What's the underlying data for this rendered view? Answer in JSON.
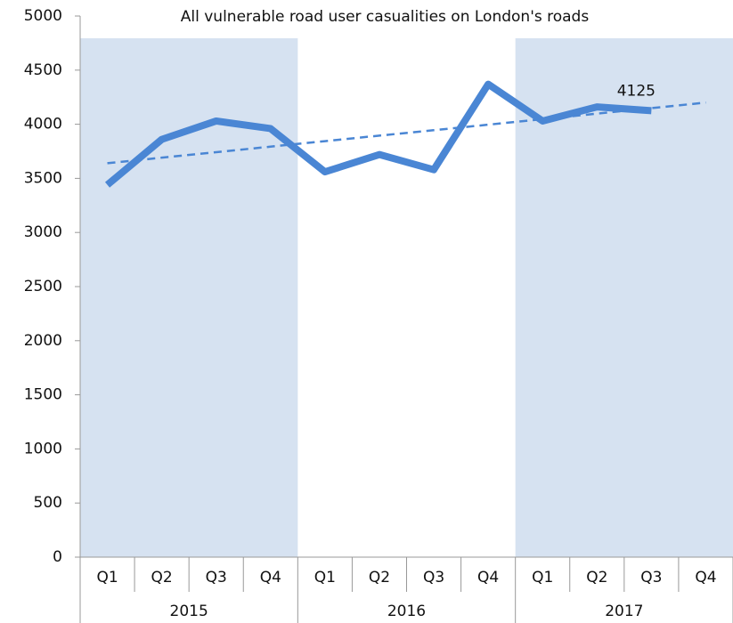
{
  "chart_data": {
    "type": "line",
    "title": "All vulnerable road user  casualities on London's roads",
    "groups": [
      {
        "name": "2015",
        "categories": [
          "Q1",
          "Q2",
          "Q3",
          "Q4"
        ]
      },
      {
        "name": "2016",
        "categories": [
          "Q1",
          "Q2",
          "Q3",
          "Q4"
        ]
      },
      {
        "name": "2017",
        "categories": [
          "Q1",
          "Q2",
          "Q3",
          "Q4"
        ]
      }
    ],
    "series": [
      {
        "color": "#4a86d4",
        "values": [
          3440,
          3860,
          4030,
          3960,
          3560,
          3720,
          3580,
          4370,
          4030,
          4160,
          4125,
          null
        ],
        "value_labels": [
          null,
          null,
          null,
          null,
          null,
          null,
          null,
          null,
          null,
          null,
          "4125",
          null
        ]
      },
      {
        "color": "#4a86d4",
        "dashed": true,
        "values": [
          3640,
          3691,
          3742,
          3793,
          3844,
          3895,
          3945,
          3996,
          4047,
          4098,
          4149,
          4200
        ]
      }
    ],
    "band_color": "#d6e2f1",
    "ylim": [
      0,
      5000
    ],
    "yticks": [
      0,
      500,
      1000,
      1500,
      2000,
      2500,
      3000,
      3500,
      4000,
      4500,
      5000
    ],
    "grid": false
  }
}
